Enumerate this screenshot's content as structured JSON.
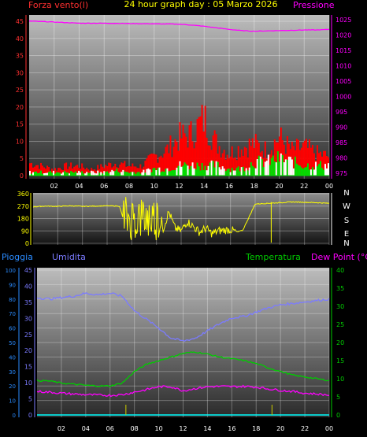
{
  "title": "24 hour graph day : 05 Marzo 2026",
  "colors": {
    "wind_gust": "#ff0000",
    "wind_avg": "#00dd00",
    "wind_calm": "#ffffff",
    "pressure": "#ff00ff",
    "direction": "#ffff00",
    "rain": "#00ffff",
    "humidity": "#7b7bff",
    "temperature": "#00cc00",
    "dewpoint": "#ff00ff",
    "left_axis": "#ff3030",
    "axis_labels": "#ffffff"
  },
  "chart_data": [
    {
      "type": "line",
      "panel": "wind-pressure",
      "title": "",
      "xlabel": "",
      "x_ticks": [
        "02",
        "04",
        "06",
        "08",
        "10",
        "12",
        "14",
        "16",
        "18",
        "20",
        "22",
        "00"
      ],
      "xlim": [
        0,
        24
      ],
      "left_axis": {
        "label": "Forza vento(l)",
        "ticks": [
          "0",
          "5",
          "10",
          "15",
          "20",
          "25",
          "30",
          "35",
          "40",
          "45"
        ],
        "lim": [
          0,
          45
        ]
      },
      "right_axis": {
        "label": "Pressione",
        "ticks": [
          "975",
          "980",
          "985",
          "990",
          "995",
          "1000",
          "1005",
          "1010",
          "1015",
          "1020",
          "1025"
        ],
        "lim": [
          975,
          1027
        ]
      },
      "series": [
        {
          "name": "Pressione",
          "axis": "right",
          "x": [
            0,
            2,
            4,
            6,
            8,
            10,
            12,
            13,
            14,
            15,
            16,
            17,
            18,
            19,
            20,
            21,
            22,
            23,
            24
          ],
          "values": [
            1024.5,
            1024.2,
            1023.8,
            1023.8,
            1023.7,
            1023.6,
            1023.5,
            1023.2,
            1022.8,
            1022.3,
            1021.8,
            1021.4,
            1021.2,
            1021.3,
            1021.4,
            1021.5,
            1021.6,
            1021.6,
            1021.8
          ]
        },
        {
          "name": "",
          "axis": "left",
          "x": [
            0,
            1,
            2,
            3,
            4,
            5,
            6,
            7,
            8,
            9,
            10,
            11,
            12,
            13,
            14,
            15,
            16,
            17,
            18,
            19,
            20,
            21,
            22,
            23,
            24
          ],
          "values": [
            4,
            3,
            2,
            3,
            3,
            2,
            3,
            4,
            3,
            3,
            6,
            8,
            12,
            13,
            18,
            10,
            7,
            9,
            10,
            8,
            12,
            8,
            9,
            7,
            6
          ]
        },
        {
          "name": "",
          "axis": "left",
          "x": [
            0,
            1,
            2,
            3,
            4,
            5,
            6,
            7,
            8,
            9,
            10,
            11,
            12,
            13,
            14,
            15,
            16,
            17,
            18,
            19,
            20,
            21,
            22,
            23,
            24
          ],
          "values": [
            1,
            1,
            1,
            1,
            1,
            1,
            1,
            1.5,
            1,
            1,
            2,
            2,
            3,
            3,
            3,
            3,
            2,
            2,
            4,
            4,
            5,
            4,
            3,
            3,
            3
          ]
        }
      ]
    },
    {
      "type": "scatter",
      "panel": "direction",
      "xlim": [
        0,
        24
      ],
      "left_axis": {
        "ticks": [
          "0",
          "90",
          "180",
          "270",
          "360"
        ],
        "lim": [
          0,
          360
        ]
      },
      "right_axis": {
        "ticks": [
          "N",
          "W",
          "S",
          "E",
          "N"
        ]
      },
      "series": [
        {
          "name": "",
          "x": [
            0,
            1,
            2,
            3,
            4,
            5,
            6,
            7,
            7.5,
            8,
            8.5,
            9,
            9.5,
            10,
            10.5,
            11,
            11.5,
            12,
            12.5,
            13,
            13.5,
            14,
            14.5,
            15,
            15.5,
            16,
            16.5,
            17,
            18,
            19,
            20,
            21,
            22,
            23,
            24
          ],
          "values": [
            265,
            270,
            268,
            272,
            268,
            270,
            272,
            270,
            120,
            40,
            300,
            100,
            280,
            70,
            90,
            230,
            110,
            90,
            160,
            120,
            80,
            110,
            70,
            90,
            95,
            100,
            80,
            95,
            285,
            290,
            295,
            300,
            298,
            295,
            290
          ]
        }
      ]
    },
    {
      "type": "line",
      "panel": "temp-humidity",
      "xlim": [
        0,
        24
      ],
      "x_ticks": [
        "02",
        "04",
        "06",
        "08",
        "10",
        "12",
        "14",
        "16",
        "18",
        "20",
        "22",
        "00"
      ],
      "axes": {
        "rain": {
          "label": "Pioggia",
          "ticks": [
            "0",
            "5",
            "10",
            "15",
            "20",
            "25",
            "30",
            "35",
            "40",
            "45"
          ],
          "lim": [
            0,
            45
          ]
        },
        "humidity": {
          "label": "Umidita",
          "ticks": [
            "0",
            "10",
            "20",
            "30",
            "40",
            "50",
            "60",
            "70",
            "80",
            "90",
            "100"
          ],
          "lim": [
            0,
            100
          ]
        },
        "temperature": {
          "label": "Temperatura",
          "ticks": [
            "0",
            "5",
            "10",
            "15",
            "20",
            "25",
            "30",
            "35",
            "40"
          ],
          "lim": [
            0,
            40
          ]
        },
        "dewpoint": {
          "label": "Dew Point (°C)"
        }
      },
      "series": [
        {
          "name": "Umidita",
          "axis": "humidity",
          "x": [
            0,
            1,
            2,
            3,
            4,
            5,
            6,
            7,
            8,
            9,
            10,
            11,
            12,
            13,
            14,
            15,
            16,
            17,
            18,
            19,
            20,
            21,
            22,
            23,
            24
          ],
          "values": [
            81,
            80,
            81,
            82,
            84,
            83,
            84,
            82,
            72,
            66,
            60,
            53,
            51,
            53,
            58,
            63,
            67,
            68,
            71,
            74,
            76,
            77,
            78,
            79,
            80
          ]
        },
        {
          "name": "Temperatura",
          "axis": "temperature",
          "x": [
            0,
            1,
            2,
            3,
            4,
            5,
            6,
            7,
            8,
            9,
            10,
            11,
            12,
            13,
            14,
            15,
            16,
            17,
            18,
            19,
            20,
            21,
            22,
            23,
            24
          ],
          "values": [
            9.5,
            9.4,
            8.8,
            8.5,
            8.2,
            8,
            8,
            8.8,
            12,
            14,
            15,
            16,
            17,
            17.4,
            16.8,
            16,
            15.5,
            15,
            14.2,
            13,
            12,
            11,
            10.5,
            10,
            9.5
          ]
        },
        {
          "name": "Dew Point",
          "axis": "temperature",
          "x": [
            0,
            1,
            2,
            3,
            4,
            5,
            6,
            7,
            8,
            9,
            10,
            11,
            12,
            13,
            14,
            15,
            16,
            17,
            18,
            19,
            20,
            21,
            22,
            23,
            24
          ],
          "values": [
            6.5,
            6.3,
            6,
            5.8,
            5.6,
            5.5,
            5.4,
            5.6,
            6.3,
            7,
            7.8,
            7.8,
            6.7,
            7.3,
            7.8,
            7.9,
            7.8,
            7.9,
            7.7,
            7.2,
            6.8,
            6.5,
            6,
            5.8,
            5.5
          ]
        },
        {
          "name": "Pioggia",
          "axis": "rain",
          "x": [
            0,
            24
          ],
          "values": [
            0,
            0
          ]
        }
      ]
    }
  ]
}
